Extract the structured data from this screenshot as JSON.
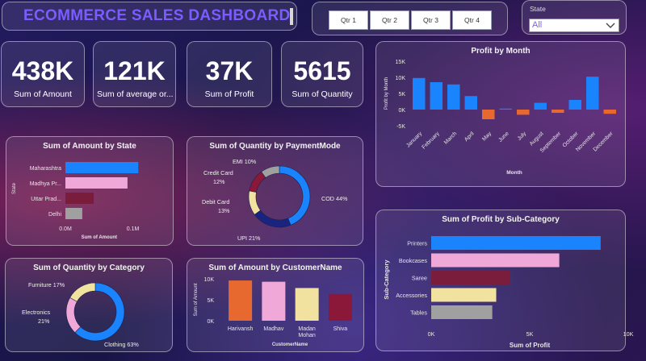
{
  "header": {
    "title": "ECOMMERCE SALES DASHBOARD"
  },
  "quarters": [
    "Qtr 1",
    "Qtr 2",
    "Qtr 3",
    "Qtr 4"
  ],
  "state_filter": {
    "label": "State",
    "value": "All"
  },
  "kpis": [
    {
      "value": "438K",
      "label": "Sum of Amount"
    },
    {
      "value": "121K",
      "label": "Sum of average or..."
    },
    {
      "value": "37K",
      "label": "Sum of Profit"
    },
    {
      "value": "5615",
      "label": "Sum of Quantity"
    }
  ],
  "colors": {
    "blue": "#1a84ff",
    "pink": "#f0a8d8",
    "maroon": "#7a1d3c",
    "gray": "#a0a0a0",
    "orange": "#e8692f",
    "yellow": "#f2e2a0",
    "navy": "#1a237e",
    "darkred": "#8b1838"
  },
  "chart_data": [
    {
      "id": "profit_by_month",
      "type": "bar",
      "title": "Profit by Month",
      "xlabel": "Month",
      "ylabel": "Profit by Month",
      "categories": [
        "January",
        "February",
        "March",
        "April",
        "May",
        "June",
        "July",
        "August",
        "September",
        "October",
        "November",
        "December"
      ],
      "values": [
        9800,
        8500,
        7800,
        4200,
        -3000,
        300,
        -1600,
        2100,
        -1000,
        3000,
        10200,
        -1300
      ],
      "ylim": [
        -5000,
        15000
      ],
      "yticks": [
        "15K",
        "10K",
        "5K",
        "0K",
        "-5K"
      ]
    },
    {
      "id": "amount_by_state",
      "type": "bar",
      "orientation": "horizontal",
      "title": "Sum of Amount by State",
      "xlabel": "Sum of Amount",
      "ylabel": "State",
      "categories": [
        "Maharashtra",
        "Madhya Pr...",
        "Uttar Prad...",
        "Delhi"
      ],
      "values": [
        0.108,
        0.092,
        0.042,
        0.025
      ],
      "xlim": [
        0,
        0.14
      ],
      "xticks": [
        "0.0M",
        "0.1M"
      ]
    },
    {
      "id": "quantity_by_paymentmode",
      "type": "pie",
      "donut": true,
      "title": "Sum of Quantity by PaymentMode",
      "categories": [
        "COD",
        "UPI",
        "Debit Card",
        "Credit Card",
        "EMI"
      ],
      "values": [
        44,
        21,
        13,
        12,
        10
      ],
      "labels": [
        "COD 44%",
        "UPI 21%",
        "Debit Card",
        "13%",
        "Credit Card",
        "12%",
        "EMI 10%"
      ]
    },
    {
      "id": "profit_by_subcategory",
      "type": "bar",
      "orientation": "horizontal",
      "title": "Sum of Profit by Sub-Category",
      "xlabel": "Sum of Profit",
      "ylabel": "Sub-Category",
      "categories": [
        "Printers",
        "Bookcases",
        "Saree",
        "Accessories",
        "Tables"
      ],
      "values": [
        8600,
        6500,
        4000,
        3300,
        3100
      ],
      "xlim": [
        0,
        10000
      ],
      "xticks": [
        "0K",
        "5K",
        "10K"
      ]
    },
    {
      "id": "quantity_by_category",
      "type": "pie",
      "donut": true,
      "title": "Sum of Quantity by Category",
      "categories": [
        "Clothing",
        "Electronics",
        "Furniture"
      ],
      "values": [
        63,
        21,
        17
      ],
      "labels": [
        "Clothing 63%",
        "Electronics",
        "21%",
        "Furniture 17%"
      ]
    },
    {
      "id": "amount_by_customername",
      "type": "bar",
      "title": "Sum of Amount by CustomerName",
      "xlabel": "CustomerName",
      "ylabel": "Sum of Amount",
      "categories": [
        "Harivansh",
        "Madhav",
        "Madan Mohan",
        "Shiva"
      ],
      "category_lines": [
        [
          "Harivansh"
        ],
        [
          "Madhav"
        ],
        [
          "Madan",
          "Mohan"
        ],
        [
          "Shiva"
        ]
      ],
      "values": [
        9600,
        9300,
        7800,
        6400
      ],
      "ylim": [
        0,
        10000
      ],
      "yticks": [
        "10K",
        "5K",
        "0K"
      ]
    }
  ]
}
